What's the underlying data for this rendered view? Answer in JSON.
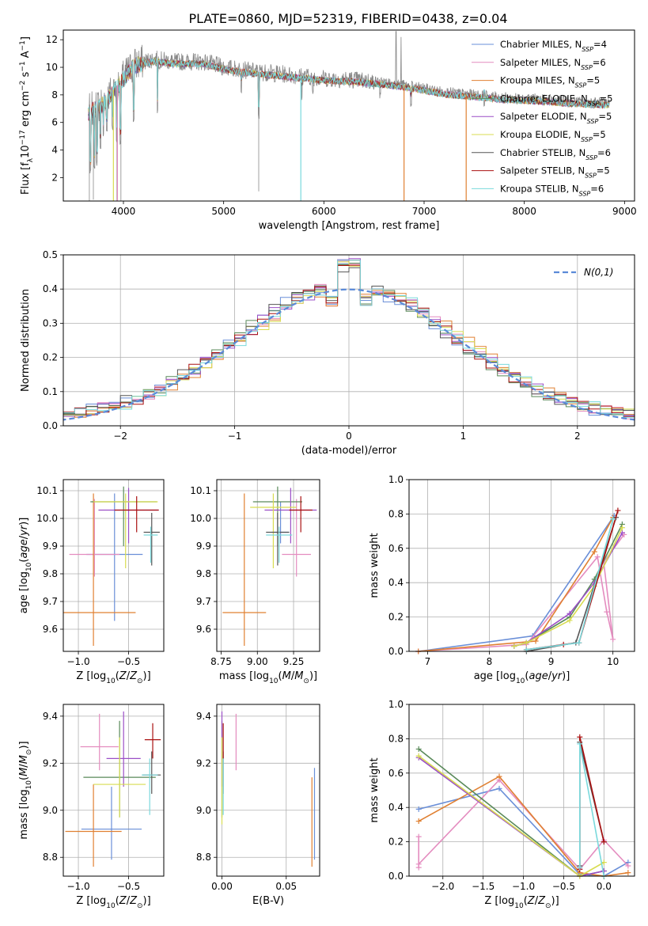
{
  "figure_title": "PLATE=0860, MJD=52319, FIBERID=0438, z=0.04",
  "colors": {
    "Chabrier MILES": "#6a8fd8",
    "Salpeter MILES": "#e48cbf",
    "Kroupa MILES": "#e08032",
    "Chabrier ELODIE": "#5a8a5a",
    "Salpeter ELODIE": "#9b4fc7",
    "Kroupa ELODIE": "#d8dc50",
    "Chabrier STELIB": "#555555",
    "Salpeter STELIB": "#aa1111",
    "Kroupa STELIB": "#7ad9dc",
    "data": "#888888",
    "normal": "#5b8ad8"
  },
  "chart_data": [
    {
      "id": "spectrum",
      "type": "line",
      "xlabel": "wavelength [Angstrom, rest frame]",
      "ylabel": "Flux [f_λ10^-17 erg cm^-2 s^-1 A^-1]",
      "xlim": [
        3400,
        9100
      ],
      "ylim": [
        0.3,
        12.7
      ],
      "xticks": [
        4000,
        5000,
        6000,
        7000,
        8000,
        9000
      ],
      "yticks": [
        2,
        4,
        6,
        8,
        10,
        12
      ],
      "grid": false,
      "legend": "upper right",
      "legend_entries": [
        "Chabrier MILES, N_SSP=4",
        "Salpeter MILES, N_SSP=6",
        "Kroupa MILES, N_SSP=5",
        "Chabrier ELODIE, N_SSP=5",
        "Salpeter ELODIE, N_SSP=5",
        "Kroupa ELODIE, N_SSP=5",
        "Chabrier STELIB, N_SSP=6",
        "Salpeter STELIB, N_SSP=5",
        "Kroupa STELIB, N_SSP=6"
      ],
      "continuum": {
        "x": [
          3650,
          3800,
          3950,
          4100,
          4300,
          4500,
          4800,
          5000,
          5300,
          5600,
          6000,
          6300,
          6600,
          6900,
          7200,
          7500,
          7800,
          8100,
          8500,
          8850
        ],
        "y": [
          6.8,
          7.5,
          8.8,
          10.2,
          10.6,
          10.4,
          10.4,
          10.0,
          9.7,
          9.5,
          9.2,
          9.1,
          8.9,
          8.6,
          8.2,
          8.0,
          7.8,
          7.7,
          7.5,
          7.4
        ]
      },
      "absorption_lines": [
        [
          3670,
          2.3
        ],
        [
          3710,
          2.6
        ],
        [
          3735,
          3.1
        ],
        [
          3770,
          4.2
        ],
        [
          3800,
          5.1
        ],
        [
          3835,
          5.4
        ],
        [
          3890,
          5.7
        ],
        [
          3934,
          4.8
        ],
        [
          3970,
          4.5
        ],
        [
          4101,
          6.2
        ],
        [
          4340,
          6.8
        ],
        [
          5176,
          8.4
        ],
        [
          5350,
          6.4
        ],
        [
          5780,
          7.8
        ],
        [
          5890,
          8.2
        ],
        [
          6563,
          7.9
        ],
        [
          6870,
          7.2
        ],
        [
          7600,
          7.2
        ]
      ],
      "emission_lines": [
        [
          6720,
          12.6
        ],
        [
          6770,
          12.2
        ]
      ],
      "model_dropouts": [
        {
          "series": "Kroupa MILES",
          "x": 7420
        },
        {
          "series": "Kroupa MILES",
          "x": 6800
        },
        {
          "series": "Kroupa STELIB",
          "x": 5770
        },
        {
          "series": "Kroupa ELODIE",
          "x": 3900
        },
        {
          "series": "Salpeter MILES",
          "x": 3940
        }
      ]
    },
    {
      "id": "residual_hist",
      "type": "histogram",
      "xlabel": "(data-model)/error",
      "ylabel": "Normed distribution",
      "xlim": [
        -2.5,
        2.5
      ],
      "ylim": [
        0.0,
        0.5
      ],
      "xticks": [
        -2,
        -1,
        0,
        1,
        2
      ],
      "yticks": [
        0.0,
        0.1,
        0.2,
        0.3,
        0.4,
        0.5
      ],
      "grid": true,
      "legend": "upper right",
      "normal_label": "N(0,1)",
      "bin_width": 0.1
    },
    {
      "id": "age_vs_Z",
      "type": "errorbar",
      "xlabel": "Z [log10(Z/Z⊙)]",
      "ylabel": "age  [log10(age/yr)]",
      "xlim": [
        -1.15,
        -0.15
      ],
      "ylim": [
        9.52,
        10.14
      ],
      "xticks": [
        -1.0,
        -0.5
      ],
      "yticks": [
        9.6,
        9.7,
        9.8,
        9.9,
        10.0,
        10.1
      ],
      "grid": true,
      "points": [
        {
          "series": "Chabrier MILES",
          "x": -0.64,
          "xerr": 0.28,
          "y": 9.87,
          "yerr": [
            0.24,
            0.22
          ]
        },
        {
          "series": "Salpeter MILES",
          "x": -0.84,
          "xerr": 0.25,
          "y": 9.87,
          "yerr": [
            0.08,
            0.2
          ]
        },
        {
          "series": "Kroupa MILES",
          "x": -0.85,
          "xerr": 0.42,
          "y": 9.66,
          "yerr": [
            0.12,
            0.43
          ]
        },
        {
          "series": "Chabrier ELODIE",
          "x": -0.55,
          "xerr": 0.33,
          "y": 10.06,
          "yerr": [
            0.16,
            0.055
          ]
        },
        {
          "series": "Salpeter ELODIE",
          "x": -0.5,
          "xerr": 0.3,
          "y": 10.03,
          "yerr": [
            0.12,
            0.08
          ]
        },
        {
          "series": "Kroupa ELODIE",
          "x": -0.53,
          "xerr": 0.32,
          "y": 10.06,
          "yerr": [
            0.24,
            0.03
          ]
        },
        {
          "series": "Chabrier STELIB",
          "x": -0.27,
          "xerr": 0.08,
          "y": 9.95,
          "yerr": [
            0.12,
            0.07
          ]
        },
        {
          "series": "Salpeter STELIB",
          "x": -0.42,
          "xerr": 0.22,
          "y": 10.03,
          "yerr": [
            0.08,
            0.05
          ]
        },
        {
          "series": "Kroupa STELIB",
          "x": -0.28,
          "xerr": 0.07,
          "y": 9.94,
          "yerr": [
            0.1,
            0.03
          ]
        }
      ]
    },
    {
      "id": "age_vs_mass",
      "type": "errorbar",
      "xlabel": "mass [log10(M/M⊙)]",
      "ylabel": "",
      "xlim": [
        8.72,
        9.43
      ],
      "ylim": [
        9.52,
        10.14
      ],
      "xticks": [
        8.75,
        9.0,
        9.25
      ],
      "yticks": [
        9.6,
        9.7,
        9.8,
        9.9,
        10.0,
        10.1
      ],
      "grid": true,
      "points": [
        {
          "series": "Chabrier MILES",
          "x": 9.16,
          "xerr": 0.06,
          "y": 9.95,
          "yerr": [
            0.04,
            0.11
          ]
        },
        {
          "series": "Salpeter MILES",
          "x": 9.27,
          "xerr": 0.1,
          "y": 9.87,
          "yerr": [
            0.08,
            0.2
          ]
        },
        {
          "series": "Kroupa MILES",
          "x": 8.91,
          "xerr": 0.15,
          "y": 9.66,
          "yerr": [
            0.12,
            0.43
          ]
        },
        {
          "series": "Chabrier ELODIE",
          "x": 9.14,
          "xerr": 0.17,
          "y": 10.06,
          "yerr": [
            0.16,
            0.055
          ]
        },
        {
          "series": "Salpeter ELODIE",
          "x": 9.23,
          "xerr": 0.18,
          "y": 10.03,
          "yerr": [
            0.12,
            0.08
          ]
        },
        {
          "series": "Kroupa ELODIE",
          "x": 9.11,
          "xerr": 0.16,
          "y": 10.04,
          "yerr": [
            0.22,
            0.05
          ]
        },
        {
          "series": "Chabrier STELIB",
          "x": 9.14,
          "xerr": 0.08,
          "y": 9.95,
          "yerr": [
            0.12,
            0.07
          ]
        },
        {
          "series": "Salpeter STELIB",
          "x": 9.3,
          "xerr": 0.08,
          "y": 10.03,
          "yerr": [
            0.08,
            0.05
          ]
        },
        {
          "series": "Kroupa STELIB",
          "x": 9.15,
          "xerr": 0.09,
          "y": 9.94,
          "yerr": [
            0.1,
            0.03
          ]
        }
      ]
    },
    {
      "id": "weight_vs_age",
      "type": "line",
      "xlabel": "age  [log10(age/yr)]",
      "ylabel": "mass weight",
      "xlim": [
        6.7,
        10.35
      ],
      "ylim": [
        0.0,
        1.0
      ],
      "xticks": [
        7,
        8,
        9,
        10
      ],
      "yticks": [
        0.0,
        0.2,
        0.4,
        0.6,
        0.8,
        1.0
      ],
      "grid": true,
      "series": [
        {
          "name": "Chabrier MILES",
          "x": [
            6.85,
            8.7,
            10.02
          ],
          "y": [
            0.0,
            0.09,
            0.79
          ]
        },
        {
          "name": "Salpeter MILES",
          "x": [
            6.85,
            8.6,
            9.75,
            9.9,
            10.0,
            9.85,
            10.18
          ],
          "y": [
            0.0,
            0.04,
            0.55,
            0.23,
            0.07,
            0.52,
            0.68
          ]
        },
        {
          "name": "Kroupa MILES",
          "x": [
            6.85,
            8.75,
            9.7,
            10.0
          ],
          "y": [
            0.0,
            0.06,
            0.58,
            0.78
          ]
        },
        {
          "name": "Chabrier ELODIE",
          "x": [
            8.4,
            8.6,
            9.3,
            9.7,
            10.15
          ],
          "y": [
            0.03,
            0.05,
            0.2,
            0.42,
            0.74
          ]
        },
        {
          "name": "Salpeter ELODIE",
          "x": [
            8.4,
            8.6,
            9.3,
            9.7,
            10.15
          ],
          "y": [
            0.03,
            0.05,
            0.22,
            0.4,
            0.69
          ]
        },
        {
          "name": "Kroupa ELODIE",
          "x": [
            8.4,
            8.6,
            9.3,
            9.7,
            10.15
          ],
          "y": [
            0.03,
            0.05,
            0.18,
            0.38,
            0.72
          ]
        },
        {
          "name": "Chabrier STELIB",
          "x": [
            8.6,
            9.4,
            10.05
          ],
          "y": [
            0.0,
            0.05,
            0.78
          ]
        },
        {
          "name": "Salpeter STELIB",
          "x": [
            8.6,
            9.2,
            9.45,
            10.08
          ],
          "y": [
            0.01,
            0.04,
            0.05,
            0.82
          ]
        },
        {
          "name": "Kroupa STELIB",
          "x": [
            8.6,
            9.45,
            10.0
          ],
          "y": [
            0.01,
            0.05,
            0.77
          ]
        }
      ]
    },
    {
      "id": "mass_vs_Z",
      "type": "errorbar",
      "xlabel": "Z [log10(Z/Z⊙)]",
      "ylabel": "mass [log10(M/M⊙)]",
      "xlim": [
        -1.15,
        -0.15
      ],
      "ylim": [
        8.72,
        9.45
      ],
      "xticks": [
        -1.0,
        -0.5
      ],
      "yticks": [
        8.8,
        9.0,
        9.2,
        9.4
      ],
      "grid": true,
      "points": [
        {
          "series": "Chabrier MILES",
          "x": -0.67,
          "xerr": 0.3,
          "y": 8.92,
          "yerr": [
            0.13,
            0.18
          ]
        },
        {
          "series": "Salpeter MILES",
          "x": -0.79,
          "xerr": 0.19,
          "y": 9.27,
          "yerr": [
            0.1,
            0.14
          ]
        },
        {
          "series": "Kroupa MILES",
          "x": -0.85,
          "xerr": 0.28,
          "y": 8.91,
          "yerr": [
            0.15,
            0.2
          ]
        },
        {
          "series": "Chabrier ELODIE",
          "x": -0.59,
          "xerr": 0.36,
          "y": 9.14,
          "yerr": [
            0.17,
            0.24
          ]
        },
        {
          "series": "Salpeter ELODIE",
          "x": -0.55,
          "xerr": 0.17,
          "y": 9.22,
          "yerr": [
            0.12,
            0.2
          ]
        },
        {
          "series": "Kroupa ELODIE",
          "x": -0.59,
          "xerr": 0.26,
          "y": 9.11,
          "yerr": [
            0.14,
            0.2
          ]
        },
        {
          "series": "Chabrier STELIB",
          "x": -0.27,
          "xerr": 0.09,
          "y": 9.15,
          "yerr": [
            0.08,
            0.1
          ]
        },
        {
          "series": "Salpeter STELIB",
          "x": -0.26,
          "xerr": 0.08,
          "y": 9.3,
          "yerr": [
            0.08,
            0.07
          ]
        },
        {
          "series": "Kroupa STELIB",
          "x": -0.29,
          "xerr": 0.08,
          "y": 9.15,
          "yerr": [
            0.17,
            0.07
          ]
        }
      ]
    },
    {
      "id": "mass_vs_ebv",
      "type": "errorbar",
      "xlabel": "E(B-V)",
      "ylabel": "",
      "xlim": [
        -0.004,
        0.076
      ],
      "ylim": [
        8.72,
        9.45
      ],
      "xticks": [
        0.0,
        0.05
      ],
      "yticks": [
        8.8,
        9.0,
        9.2,
        9.4
      ],
      "grid": true,
      "points": [
        {
          "series": "Chabrier MILES",
          "x": 0.072,
          "xerr": 0.0,
          "y": 8.92,
          "yerr": [
            0.13,
            0.26
          ]
        },
        {
          "series": "Salpeter MILES",
          "x": 0.011,
          "xerr": 0.0,
          "y": 9.27,
          "yerr": [
            0.1,
            0.14
          ]
        },
        {
          "series": "Kroupa MILES",
          "x": 0.07,
          "xerr": 0.0,
          "y": 8.91,
          "yerr": [
            0.15,
            0.23
          ]
        },
        {
          "series": "Chabrier ELODIE",
          "x": 0.0,
          "xerr": 0.0,
          "y": 9.14,
          "yerr": [
            0.17,
            0.24
          ]
        },
        {
          "series": "Salpeter ELODIE",
          "x": 0.0,
          "xerr": 0.0,
          "y": 9.22,
          "yerr": [
            0.12,
            0.2
          ]
        },
        {
          "series": "Kroupa ELODIE",
          "x": 0.0,
          "xerr": 0.0,
          "y": 9.11,
          "yerr": [
            0.17,
            0.2
          ]
        },
        {
          "series": "Chabrier STELIB",
          "x": 0.001,
          "xerr": 0.0,
          "y": 9.15,
          "yerr": [
            0.08,
            0.1
          ]
        },
        {
          "series": "Salpeter STELIB",
          "x": 0.001,
          "xerr": 0.0,
          "y": 9.3,
          "yerr": [
            0.08,
            0.07
          ]
        },
        {
          "series": "Kroupa STELIB",
          "x": 0.001,
          "xerr": 0.0,
          "y": 9.15,
          "yerr": [
            0.17,
            0.07
          ]
        }
      ]
    },
    {
      "id": "weight_vs_Z",
      "type": "line",
      "xlabel": "Z [log10(Z/Z⊙)]",
      "ylabel": "mass weight",
      "xlim": [
        -2.42,
        0.38
      ],
      "ylim": [
        0.0,
        1.0
      ],
      "xticks": [
        -2.0,
        -1.5,
        -1.0,
        -0.5,
        0.0
      ],
      "yticks": [
        0.0,
        0.2,
        0.4,
        0.6,
        0.8,
        1.0
      ],
      "grid": true,
      "series": [
        {
          "name": "Chabrier MILES",
          "x": [
            -2.3,
            -1.3,
            -0.3,
            0.0,
            0.3
          ],
          "y": [
            0.39,
            0.51,
            0.01,
            0.0,
            0.08
          ]
        },
        {
          "name": "Salpeter MILES",
          "x": [
            -2.3,
            -2.3,
            -2.3,
            -1.3,
            -0.3,
            0.0,
            0.3
          ],
          "y": [
            0.05,
            0.23,
            0.07,
            0.56,
            0.04,
            0.21,
            0.06
          ]
        },
        {
          "name": "Kroupa MILES",
          "x": [
            -2.3,
            -1.3,
            -0.3,
            0.0,
            0.3
          ],
          "y": [
            0.32,
            0.58,
            0.02,
            0.0,
            0.02
          ]
        },
        {
          "name": "Chabrier ELODIE",
          "x": [
            -2.3,
            -0.3,
            0.0
          ],
          "y": [
            0.74,
            0.0,
            0.03
          ]
        },
        {
          "name": "Salpeter ELODIE",
          "x": [
            -2.3,
            -0.3,
            0.0
          ],
          "y": [
            0.69,
            0.0,
            0.03
          ]
        },
        {
          "name": "Kroupa ELODIE",
          "x": [
            -2.3,
            -0.3,
            0.0
          ],
          "y": [
            0.7,
            0.0,
            0.08
          ]
        },
        {
          "name": "Chabrier STELIB",
          "x": [
            -0.3,
            -0.3,
            0.0
          ],
          "y": [
            0.06,
            0.78,
            0.2
          ]
        },
        {
          "name": "Salpeter STELIB",
          "x": [
            -0.3,
            -0.3,
            0.0
          ],
          "y": [
            0.04,
            0.81,
            0.2
          ]
        },
        {
          "name": "Kroupa STELIB",
          "x": [
            -0.3,
            -0.3,
            0.0
          ],
          "y": [
            0.05,
            0.77,
            0.0
          ]
        }
      ]
    }
  ]
}
